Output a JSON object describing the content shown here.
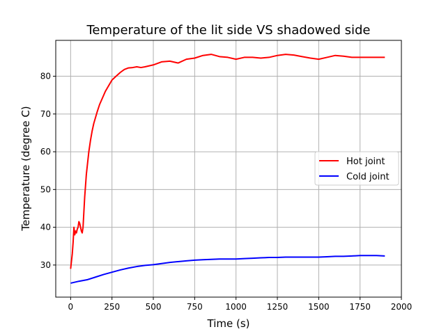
{
  "chart_data": {
    "type": "line",
    "title": "Temperature of the lit side VS shadowed side",
    "xlabel": "Time (s)",
    "ylabel": "Temperature (degree C)",
    "xlim": [
      -90,
      2000
    ],
    "ylim": [
      21.5,
      89.5
    ],
    "xticks": [
      0,
      250,
      500,
      750,
      1000,
      1250,
      1500,
      1750,
      2000
    ],
    "yticks": [
      30,
      40,
      50,
      60,
      70,
      80
    ],
    "xtick_labels": [
      "0",
      "250",
      "500",
      "750",
      "1000",
      "1250",
      "1500",
      "1750",
      "2000"
    ],
    "ytick_labels": [
      "30",
      "40",
      "50",
      "60",
      "70",
      "80"
    ],
    "grid": true,
    "legend_position": "center-right",
    "series": [
      {
        "name": "Hot joint",
        "color": "#ff0000",
        "x": [
          0,
          5,
          10,
          15,
          20,
          25,
          30,
          35,
          40,
          45,
          50,
          55,
          60,
          65,
          70,
          75,
          80,
          85,
          90,
          95,
          100,
          110,
          120,
          130,
          140,
          150,
          160,
          175,
          190,
          210,
          230,
          250,
          275,
          300,
          325,
          350,
          375,
          400,
          425,
          450,
          500,
          550,
          600,
          650,
          700,
          750,
          800,
          850,
          900,
          950,
          1000,
          1050,
          1100,
          1150,
          1200,
          1250,
          1300,
          1350,
          1400,
          1450,
          1500,
          1550,
          1600,
          1650,
          1700,
          1750,
          1800,
          1850,
          1900
        ],
        "y": [
          29,
          31,
          33,
          36,
          40,
          38,
          39,
          38.5,
          39.5,
          40,
          41.5,
          41,
          40,
          39,
          38.5,
          40,
          44,
          48,
          51,
          54,
          56,
          60,
          63,
          65.5,
          67.5,
          69,
          70.5,
          72.5,
          74,
          76,
          77.5,
          79,
          80,
          81,
          81.8,
          82.2,
          82.3,
          82.5,
          82.3,
          82.5,
          83,
          83.8,
          84,
          83.5,
          84.5,
          84.8,
          85.5,
          85.8,
          85.2,
          85,
          84.5,
          85,
          85,
          84.8,
          85,
          85.5,
          85.8,
          85.6,
          85.2,
          84.8,
          84.5,
          85,
          85.5,
          85.3,
          85,
          85,
          85,
          85,
          85
        ]
      },
      {
        "name": "Cold joint",
        "color": "#0000ff",
        "x": [
          0,
          50,
          100,
          150,
          200,
          250,
          300,
          350,
          400,
          450,
          500,
          550,
          600,
          650,
          700,
          750,
          800,
          850,
          900,
          950,
          1000,
          1050,
          1100,
          1150,
          1200,
          1250,
          1300,
          1350,
          1400,
          1450,
          1500,
          1550,
          1600,
          1650,
          1700,
          1750,
          1800,
          1850,
          1900
        ],
        "y": [
          25.2,
          25.7,
          26.1,
          26.8,
          27.5,
          28.1,
          28.7,
          29.2,
          29.6,
          29.9,
          30.1,
          30.4,
          30.7,
          30.9,
          31.1,
          31.3,
          31.4,
          31.5,
          31.6,
          31.6,
          31.6,
          31.7,
          31.8,
          31.9,
          32,
          32,
          32.1,
          32.1,
          32.1,
          32.1,
          32.1,
          32.2,
          32.3,
          32.3,
          32.4,
          32.5,
          32.5,
          32.5,
          32.4
        ]
      }
    ]
  }
}
